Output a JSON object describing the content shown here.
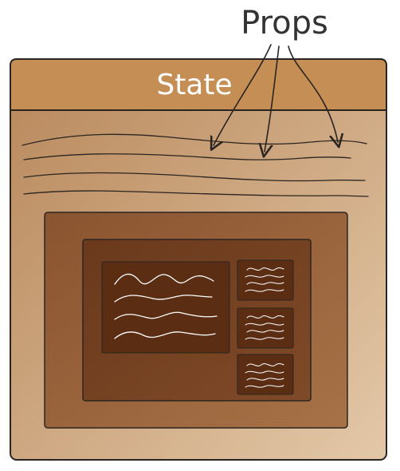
{
  "diagram": {
    "top_label": "Props",
    "container_title": "State"
  },
  "colors": {
    "outer_gradient_start": "#B8875A",
    "outer_gradient_end": "#E3C8A8",
    "header_fill": "#C48E55",
    "outline": "#2A2520",
    "inner_panel_fill": "#8F5A34",
    "card_fill": "#6E3D1E",
    "card_inner_fill": "#5B2E14",
    "sketch_line": "#FFFFFF",
    "title_text": "#FFFFFF",
    "label_text": "#333333"
  },
  "icons": {
    "arrows": "curved-arrow-icon",
    "wave_lines": "wavy-line-icon"
  }
}
